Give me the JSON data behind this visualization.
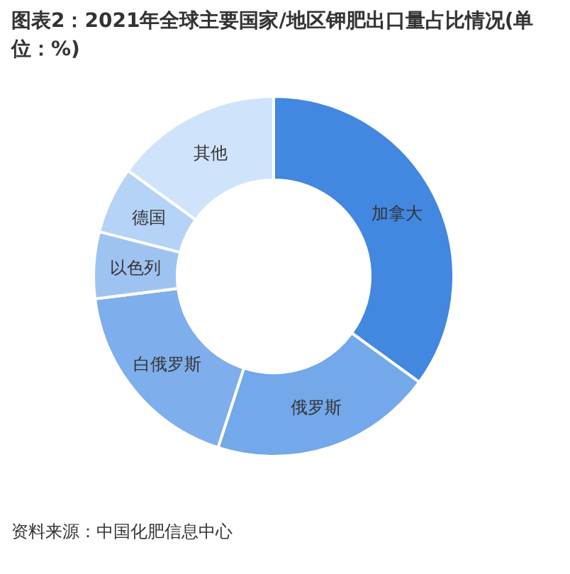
{
  "chart_data": {
    "type": "donut",
    "title": "图表2：2021年全球主要国家/地区钾肥出口量占比情况(单位：%)",
    "categories": [
      "加拿大",
      "俄罗斯",
      "白俄罗斯",
      "以色列",
      "德国",
      "其他"
    ],
    "values": [
      35,
      20,
      18,
      6,
      6,
      15
    ],
    "colors": [
      "#4287e0",
      "#73a8ea",
      "#7eaeeb",
      "#9fc3f1",
      "#b5d3f6",
      "#cfe3fb"
    ],
    "annotations": [
      "资料来源：中国化肥信息中心"
    ]
  }
}
